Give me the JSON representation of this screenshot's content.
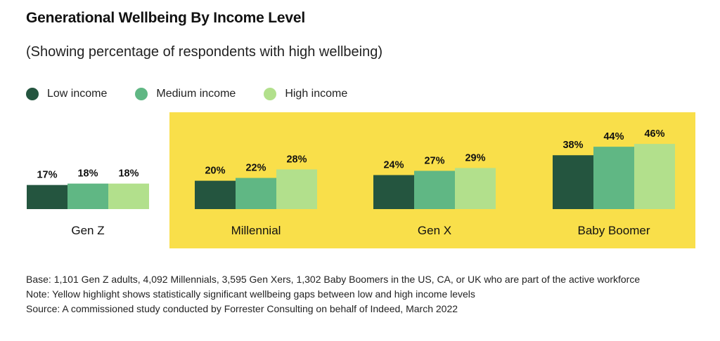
{
  "title": "Generational Wellbeing By Income Level",
  "subtitle": "(Showing percentage of respondents with high wellbeing)",
  "colors": {
    "low": "#24553f",
    "medium": "#60b784",
    "high": "#b2e08c",
    "highlight": "#f9df4a"
  },
  "legend": [
    {
      "label": "Low income",
      "color": "#24553f"
    },
    {
      "label": "Medium income",
      "color": "#60b784"
    },
    {
      "label": "High income",
      "color": "#b2e08c"
    }
  ],
  "chart_data": {
    "type": "bar",
    "categories": [
      "Gen Z",
      "Millennial",
      "Gen X",
      "Baby Boomer"
    ],
    "series": [
      {
        "name": "Low income",
        "values": [
          17,
          20,
          24,
          38
        ]
      },
      {
        "name": "Medium income",
        "values": [
          18,
          22,
          27,
          44
        ]
      },
      {
        "name": "High income",
        "values": [
          18,
          28,
          29,
          46
        ]
      }
    ],
    "value_suffix": "%",
    "highlighted_categories": [
      "Millennial",
      "Gen X",
      "Baby Boomer"
    ],
    "title": "Generational Wellbeing By Income Level",
    "subtitle": "(Showing percentage of respondents with high wellbeing)",
    "xlabel": "",
    "ylabel": "",
    "legend_position": "top-left",
    "grid": false
  },
  "footer": {
    "base": "Base: 1,101 Gen Z adults, 4,092 Millennials, 3,595 Gen Xers, 1,302 Baby Boomers in the US, CA, or UK who are part of the active workforce",
    "note": "Note: Yellow highlight shows statistically significant wellbeing gaps between low and high income levels",
    "source": "Source: A commissioned study conducted by Forrester Consulting on behalf of Indeed, March 2022"
  }
}
